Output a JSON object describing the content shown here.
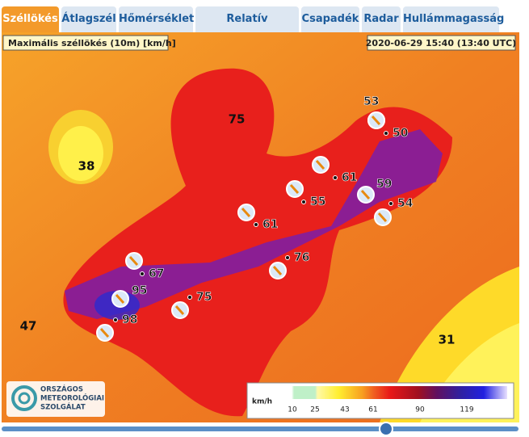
{
  "tabs": [
    "Széllökés",
    "Átlagszél",
    "Hőmérséklet",
    "Relatív nedvesség",
    "Csapadék",
    "Radar",
    "Hullámmagasság"
  ],
  "map": {
    "title": "Maximális széllökés (10m) [km/h]",
    "timestamp": "2020-06-29 15:40 (13:40 UTC)",
    "contour_labels": [
      "75",
      "38",
      "47",
      "31"
    ],
    "stations": [
      "53",
      "50",
      "61",
      "59",
      "54",
      "55",
      "61",
      "76",
      "67",
      "95",
      "75",
      "98"
    ]
  },
  "legend": {
    "unit": "km/h",
    "ticks": [
      "10",
      "25",
      "43",
      "61",
      "90",
      "119"
    ]
  },
  "logo": {
    "lines": [
      "ORSZÁGOS",
      "METEOROLÓGIAI",
      "SZOLGÁLAT"
    ]
  }
}
